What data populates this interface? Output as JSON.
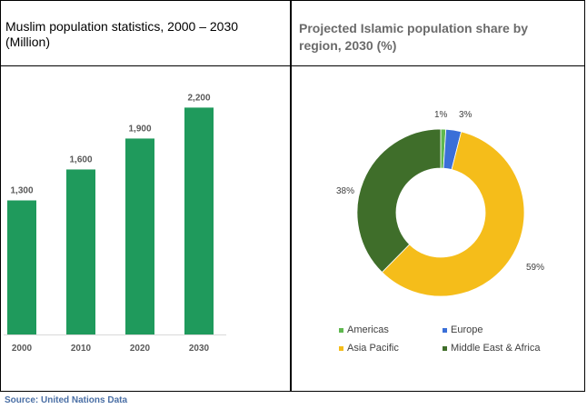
{
  "source": "Source: United Nations Data",
  "colors": {
    "bar": "#1f9a5c",
    "americas": "#5fb84f",
    "europe": "#3a6fd8",
    "asia_pacific": "#f5bd1a",
    "middle_east_africa": "#3f6e2a"
  },
  "chart_data": [
    {
      "type": "bar",
      "title": "Muslim population statistics, 2000 – 2030 (Million)",
      "categories": [
        "2000",
        "2010",
        "2020",
        "2030"
      ],
      "values": [
        1300,
        1600,
        1900,
        2200
      ],
      "data_labels": [
        "1,300",
        "1,600",
        "1,900",
        "2,200"
      ],
      "ylim": [
        0,
        2600
      ],
      "grid": false
    },
    {
      "type": "pie",
      "title": "Projected Islamic population share by region, 2030 (%)",
      "categories": [
        "Americas",
        "Europe",
        "Asia Pacific",
        "Middle East & Africa"
      ],
      "values": [
        1,
        3,
        59,
        38
      ],
      "data_labels": [
        "1%",
        "3%",
        "59%",
        "38%"
      ],
      "legend": "bottom"
    }
  ]
}
